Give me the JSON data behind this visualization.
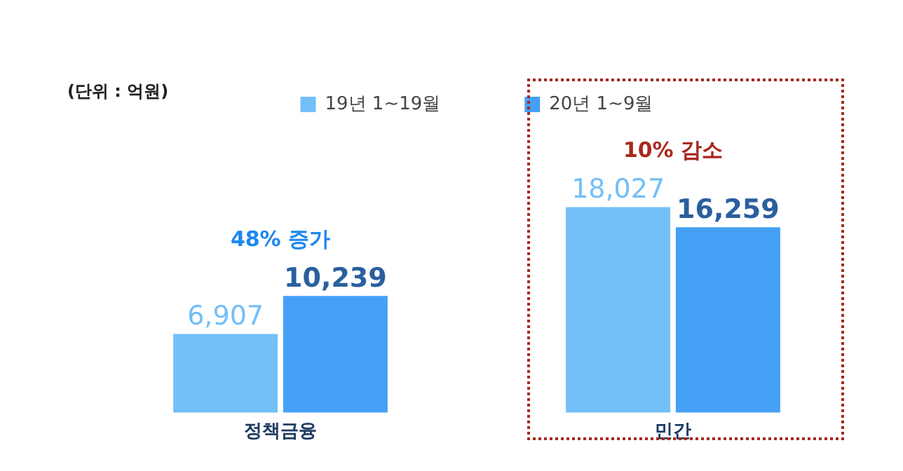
{
  "chart_data": {
    "type": "bar",
    "categories": [
      "정책금융",
      "민간"
    ],
    "series": [
      {
        "name": "19년 1~19월",
        "color": "#73bff7",
        "values": [
          6907,
          18027
        ],
        "value_labels": [
          "6,907",
          "18,027"
        ]
      },
      {
        "name": "20년 1~9월",
        "color": "#45a0f5",
        "values": [
          10239,
          16259
        ],
        "value_labels": [
          "10,239",
          "16,259"
        ]
      }
    ],
    "annotations": [
      "(단위 : 억원)",
      "48% 증가",
      "10% 감소"
    ],
    "legend": "top",
    "grid": false
  }
}
